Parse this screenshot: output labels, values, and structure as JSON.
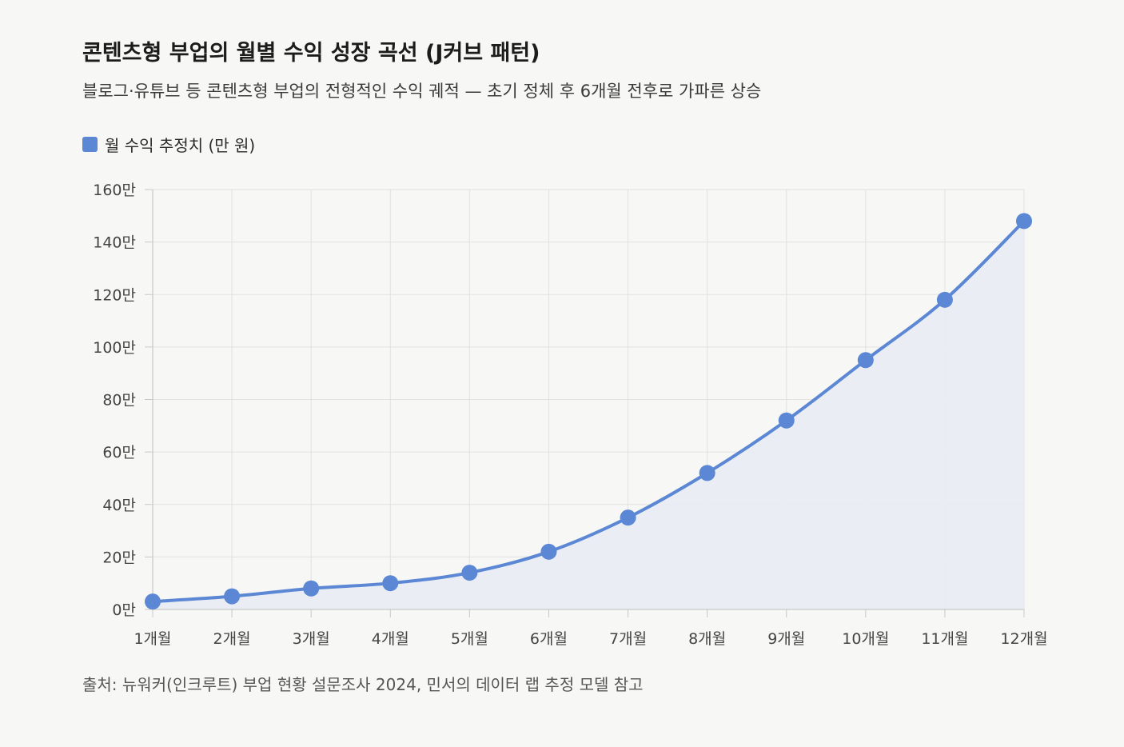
{
  "header": {
    "title": "콘텐츠형 부업의 월별 수익 성장 곡선 (J커브 패턴)",
    "subtitle": "블로그·유튜브 등 콘텐츠형 부업의 전형적인 수익 궤적 — 초기 정체 후 6개월 전후로 가파른 상승"
  },
  "legend": {
    "label": "월 수익 추정치 (만 원)",
    "color": "#5b87d4"
  },
  "footer": {
    "source": "출처: 뉴워커(인크루트) 부업 현황 설문조사 2024, 민서의 데이터 랩 추정 모델 참고"
  },
  "colors": {
    "line": "#5b87d4",
    "fill": "#e9ecf3",
    "grid": "#e2e2e2",
    "axis": "#c8c8c8",
    "background": "#f7f7f5"
  },
  "chart_data": {
    "type": "line",
    "title": "콘텐츠형 부업의 월별 수익 성장 곡선 (J커브 패턴)",
    "categories": [
      "1개월",
      "2개월",
      "3개월",
      "4개월",
      "5개월",
      "6개월",
      "7개월",
      "8개월",
      "9개월",
      "10개월",
      "11개월",
      "12개월"
    ],
    "series": [
      {
        "name": "월 수익 추정치 (만 원)",
        "values": [
          3,
          5,
          8,
          10,
          14,
          22,
          35,
          52,
          72,
          95,
          118,
          148
        ]
      }
    ],
    "ylim": [
      0,
      160
    ],
    "yticks": [
      0,
      20,
      40,
      60,
      80,
      100,
      120,
      140,
      160
    ],
    "ytick_labels": [
      "0만",
      "20만",
      "40만",
      "60만",
      "80만",
      "100만",
      "120만",
      "140만",
      "160만"
    ],
    "grid": true,
    "area_fill": true,
    "legend_position": "top-left"
  }
}
